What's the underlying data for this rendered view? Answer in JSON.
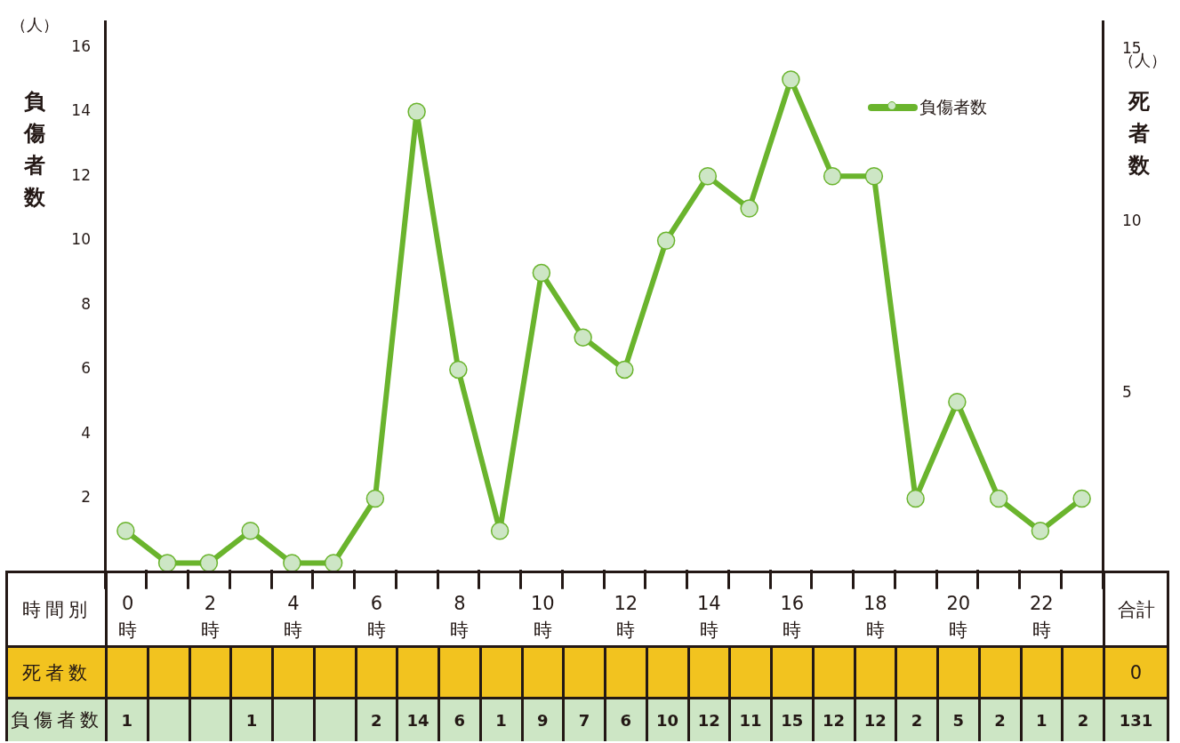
{
  "chart_data": {
    "type": "line",
    "ylabel": "負傷者数",
    "y2label": "死者数",
    "annotations": [
      "（人）",
      "（人）",
      "時間別",
      "合計",
      "死者数",
      "0",
      "131"
    ],
    "categories": [
      "0時",
      null,
      "2時",
      null,
      "4時",
      null,
      "6時",
      null,
      "8時",
      null,
      "10時",
      null,
      "12時",
      null,
      "14時",
      null,
      "16時",
      null,
      "18時",
      null,
      "20時",
      null,
      "22時",
      null
    ],
    "series": [
      {
        "name": "負傷者数",
        "color": "#6ab42d",
        "values": [
          1,
          0,
          0,
          1,
          0,
          0,
          2,
          14,
          6,
          1,
          9,
          7,
          6,
          10,
          12,
          11,
          15,
          12,
          12,
          2,
          5,
          2,
          1,
          2
        ],
        "value_labels": [
          "1",
          null,
          null,
          "1",
          null,
          null,
          "2",
          "14",
          "6",
          "1",
          "9",
          "7",
          "6",
          "10",
          "12",
          "11",
          "15",
          "12",
          "12",
          "2",
          "5",
          "2",
          "1",
          "2"
        ]
      }
    ],
    "ylim": [
      -0.2,
      16.8
    ],
    "yticks": [
      2,
      4,
      6,
      8,
      10,
      12,
      14,
      16
    ],
    "y2lim": [
      -0.1,
      15.8
    ],
    "y2ticks": [
      5,
      10,
      15
    ],
    "legend": "top right",
    "marker": "circle",
    "line_style": "solid"
  }
}
